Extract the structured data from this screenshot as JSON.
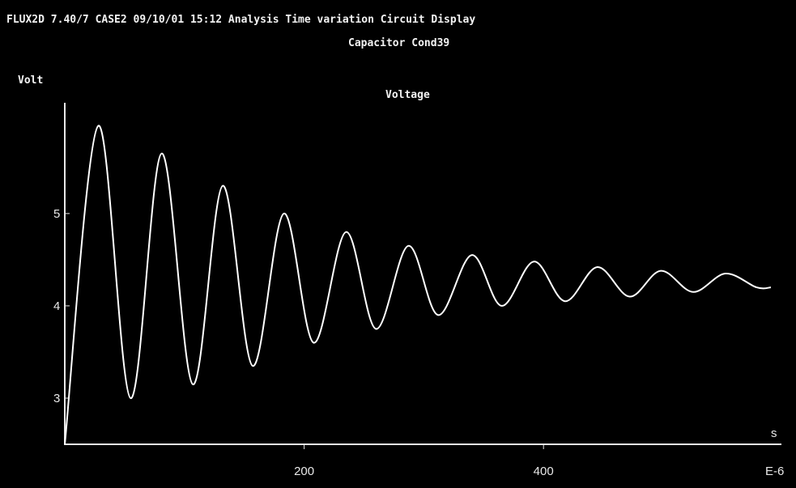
{
  "header": {
    "status_line": "FLUX2D 7.40/7 CASE2 09/10/01 15:12 Analysis Time variation Circuit Display",
    "subtitle": "Capacitor Cond39"
  },
  "colors": {
    "background": "#000000",
    "trace": "#ffffff",
    "axes": "#e8e8e8",
    "text": "#f2f2f2"
  },
  "chart_data": {
    "type": "line",
    "title": "Voltage",
    "ylabel": "Volt",
    "xlabel": "s",
    "x_unit_multiplier": "E-6",
    "xlim": [
      0,
      590
    ],
    "ylim": [
      2.5,
      6.2
    ],
    "x_ticks": [
      200,
      400
    ],
    "y_ticks": [
      3,
      4,
      5
    ],
    "grid": false,
    "series": [
      {
        "x": [
          0,
          28,
          55,
          81,
          107,
          132,
          157,
          183,
          208,
          235,
          260,
          287,
          312,
          340,
          365,
          392,
          418,
          445,
          472,
          498,
          525,
          552,
          578,
          590
        ],
        "values": [
          2.5,
          5.95,
          3.0,
          5.65,
          3.15,
          5.3,
          3.35,
          5.0,
          3.6,
          4.8,
          3.75,
          4.65,
          3.9,
          4.55,
          4.0,
          4.48,
          4.05,
          4.42,
          4.1,
          4.38,
          4.15,
          4.35,
          4.2,
          4.2
        ]
      }
    ]
  }
}
